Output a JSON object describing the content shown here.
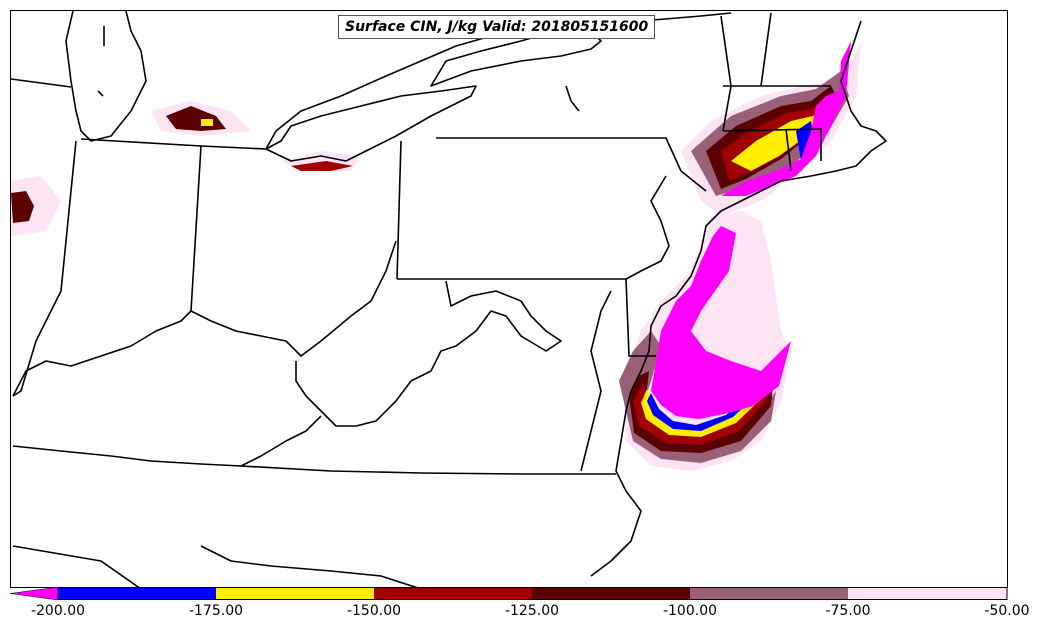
{
  "title": "Surface CIN, J/kg Valid: 201805151600",
  "colorbar": {
    "ticks": [
      "-200.00",
      "-175.00",
      "-150.00",
      "-125.00",
      "-100.00",
      "-75.00",
      "-50.00"
    ],
    "colors": [
      "#ff00ff",
      "#0000ff",
      "#ffee00",
      "#a00000",
      "#5a0000",
      "#9a6078",
      "#fce4f4"
    ]
  },
  "colors": {
    "boundary": "#000000",
    "cin_lt_-200": "#ff00ff",
    "cin_-200_-175": "#0000ff",
    "cin_-175_-150": "#ffee00",
    "cin_-150_-125": "#a00000",
    "cin_-125_-100": "#5a0000",
    "cin_-100_-75": "#9a6078",
    "cin_-75_-50": "#fce4f4"
  }
}
